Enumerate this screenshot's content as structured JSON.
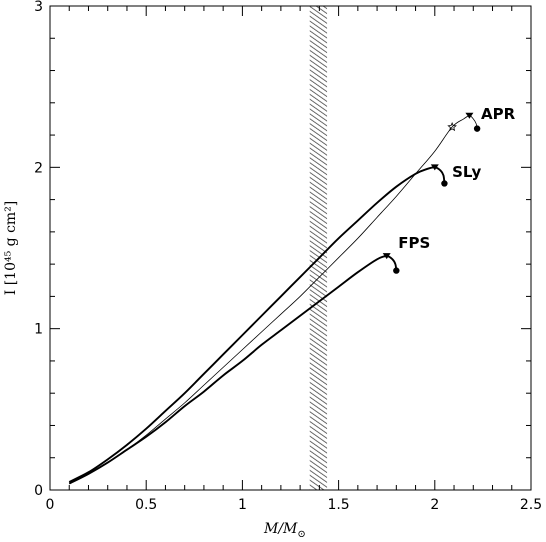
{
  "chart_data": {
    "type": "line",
    "xlabel_main": "M/M",
    "xlabel_sub": "⊙",
    "ylabel": "I [10⁴⁵ g cm²]",
    "xlim": [
      0,
      2.5
    ],
    "ylim": [
      0,
      3
    ],
    "x_ticks": [
      0,
      0.5,
      1,
      1.5,
      2,
      2.5
    ],
    "x_tick_labels": [
      "0",
      "0.5",
      "1",
      "1.5",
      "2",
      "2.5"
    ],
    "y_ticks": [
      0,
      1,
      2,
      3
    ],
    "y_tick_labels": [
      "0",
      "1",
      "2",
      "3"
    ],
    "grid": false,
    "shaded_band": {
      "x_range": [
        1.35,
        1.44
      ],
      "pattern": "diagonal-hatch"
    },
    "series": [
      {
        "name": "APR",
        "line_weight": "thin",
        "points": [
          [
            0.1,
            0.04
          ],
          [
            0.2,
            0.1
          ],
          [
            0.3,
            0.17
          ],
          [
            0.4,
            0.25
          ],
          [
            0.5,
            0.34
          ],
          [
            0.6,
            0.44
          ],
          [
            0.7,
            0.54
          ],
          [
            0.8,
            0.65
          ],
          [
            0.9,
            0.76
          ],
          [
            1.0,
            0.87
          ],
          [
            1.1,
            0.98
          ],
          [
            1.2,
            1.09
          ],
          [
            1.3,
            1.2
          ],
          [
            1.4,
            1.32
          ],
          [
            1.5,
            1.44
          ],
          [
            1.6,
            1.56
          ],
          [
            1.7,
            1.69
          ],
          [
            1.8,
            1.82
          ],
          [
            1.9,
            1.96
          ],
          [
            2.0,
            2.1
          ],
          [
            2.09,
            2.25
          ],
          [
            2.15,
            2.3
          ],
          [
            2.18,
            2.32
          ],
          [
            2.2,
            2.3
          ],
          [
            2.215,
            2.27
          ],
          [
            2.22,
            2.24
          ]
        ],
        "markers": {
          "star": [
            2.09,
            2.25
          ],
          "triangle": [
            2.18,
            2.32
          ],
          "dot": [
            2.22,
            2.24
          ]
        }
      },
      {
        "name": "SLy",
        "line_weight": "thick",
        "points": [
          [
            0.1,
            0.05
          ],
          [
            0.2,
            0.11
          ],
          [
            0.3,
            0.19
          ],
          [
            0.4,
            0.28
          ],
          [
            0.5,
            0.38
          ],
          [
            0.6,
            0.49
          ],
          [
            0.7,
            0.6
          ],
          [
            0.8,
            0.72
          ],
          [
            0.9,
            0.84
          ],
          [
            1.0,
            0.96
          ],
          [
            1.1,
            1.08
          ],
          [
            1.2,
            1.2
          ],
          [
            1.3,
            1.32
          ],
          [
            1.4,
            1.44
          ],
          [
            1.5,
            1.56
          ],
          [
            1.6,
            1.67
          ],
          [
            1.7,
            1.78
          ],
          [
            1.8,
            1.88
          ],
          [
            1.9,
            1.96
          ],
          [
            1.96,
            1.99
          ],
          [
            2.0,
            2.0
          ],
          [
            2.03,
            1.98
          ],
          [
            2.045,
            1.95
          ],
          [
            2.05,
            1.9
          ]
        ],
        "markers": {
          "triangle": [
            2.0,
            2.0
          ],
          "dot": [
            2.05,
            1.9
          ]
        }
      },
      {
        "name": "FPS",
        "line_weight": "thick",
        "points": [
          [
            0.1,
            0.04
          ],
          [
            0.2,
            0.1
          ],
          [
            0.3,
            0.17
          ],
          [
            0.4,
            0.25
          ],
          [
            0.5,
            0.33
          ],
          [
            0.6,
            0.42
          ],
          [
            0.7,
            0.52
          ],
          [
            0.8,
            0.61
          ],
          [
            0.9,
            0.71
          ],
          [
            1.0,
            0.8
          ],
          [
            1.1,
            0.9
          ],
          [
            1.2,
            0.99
          ],
          [
            1.3,
            1.08
          ],
          [
            1.4,
            1.17
          ],
          [
            1.5,
            1.26
          ],
          [
            1.6,
            1.35
          ],
          [
            1.7,
            1.43
          ],
          [
            1.75,
            1.45
          ],
          [
            1.78,
            1.43
          ],
          [
            1.795,
            1.4
          ],
          [
            1.8,
            1.36
          ]
        ],
        "markers": {
          "triangle": [
            1.75,
            1.45
          ],
          "dot": [
            1.8,
            1.36
          ]
        }
      }
    ],
    "annotations": [
      {
        "text": "APR",
        "x": 2.24,
        "y": 2.33
      },
      {
        "text": "SLy",
        "x": 2.09,
        "y": 1.97
      },
      {
        "text": "FPS",
        "x": 1.81,
        "y": 1.53
      }
    ]
  }
}
